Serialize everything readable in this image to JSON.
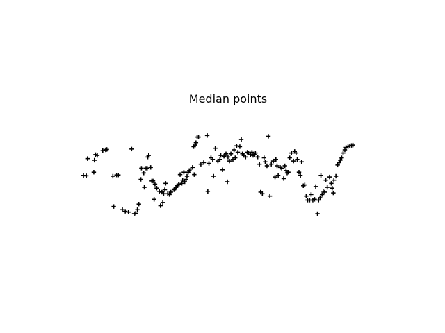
{
  "chart_data": {
    "type": "scatter",
    "title": "Median points",
    "xlabel": "",
    "ylabel": "",
    "axes_visible": false,
    "grid": false,
    "legend": "none",
    "marker": "plus",
    "marker_color": "#000000",
    "xlim": [
      0,
      100
    ],
    "ylim": [
      0,
      100
    ],
    "series": [
      {
        "points": [
          [
            0,
            48
          ],
          [
            1,
            47.5
          ],
          [
            1.4,
            69
          ],
          [
            3.6,
            52
          ],
          [
            3.8,
            67
          ],
          [
            4.2,
            74
          ],
          [
            4.8,
            73
          ],
          [
            6.7,
            79
          ],
          [
            7.7,
            80
          ],
          [
            8.1,
            80.5
          ],
          [
            10.2,
            47
          ],
          [
            10.5,
            9
          ],
          [
            11.5,
            48.5
          ],
          [
            12.1,
            48.5
          ],
          [
            13.5,
            5
          ],
          [
            14.5,
            3
          ],
          [
            15.6,
            2
          ],
          [
            16.7,
            81
          ],
          [
            17.6,
            0
          ],
          [
            18.1,
            0.5
          ],
          [
            18.7,
            5
          ],
          [
            19.2,
            12
          ],
          [
            19.9,
            43
          ],
          [
            20.1,
            57
          ],
          [
            20.9,
            51
          ],
          [
            21.1,
            33
          ],
          [
            21.7,
            57
          ],
          [
            22.1,
            57
          ],
          [
            22.3,
            71
          ],
          [
            22.6,
            73
          ],
          [
            23.3,
            58
          ],
          [
            23.7,
            41
          ],
          [
            24.1,
            41
          ],
          [
            24.5,
            18
          ],
          [
            24.8,
            37
          ],
          [
            25.4,
            32
          ],
          [
            26.3,
            28
          ],
          [
            26.7,
            10
          ],
          [
            27.2,
            27
          ],
          [
            27.5,
            14
          ],
          [
            27.8,
            25
          ],
          [
            28.2,
            30
          ],
          [
            28.5,
            38
          ],
          [
            29.2,
            25
          ],
          [
            29.8,
            24
          ],
          [
            30.3,
            27
          ],
          [
            31.4,
            30
          ],
          [
            31.7,
            31
          ],
          [
            32.1,
            33
          ],
          [
            32.6,
            35
          ],
          [
            33.0,
            37
          ],
          [
            33.5,
            49
          ],
          [
            34.4,
            42
          ],
          [
            34.1,
            38
          ],
          [
            34.8,
            52
          ],
          [
            35.1,
            40
          ],
          [
            35.6,
            43
          ],
          [
            35.9,
            47
          ],
          [
            36.3,
            52
          ],
          [
            36.7,
            54
          ],
          [
            37.2,
            56
          ],
          [
            37.8,
            58
          ],
          [
            38.4,
            49
          ],
          [
            38.2,
            84
          ],
          [
            38.7,
            86
          ],
          [
            39.0,
            89
          ],
          [
            39.4,
            96
          ],
          [
            39.9,
            96
          ],
          [
            40.7,
            62
          ],
          [
            41.7,
            64
          ],
          [
            42.9,
            98
          ],
          [
            43.1,
            28
          ],
          [
            43.5,
            63
          ],
          [
            44.2,
            70
          ],
          [
            44.8,
            68
          ],
          [
            45.1,
            47
          ],
          [
            45.7,
            82
          ],
          [
            46.6,
            66
          ],
          [
            47.3,
            68
          ],
          [
            47.6,
            73
          ],
          [
            48.2,
            55
          ],
          [
            48.7,
            72
          ],
          [
            49.4,
            75
          ],
          [
            49.9,
            40
          ],
          [
            50.1,
            71
          ],
          [
            50.6,
            66
          ],
          [
            51.1,
            75
          ],
          [
            51.8,
            68
          ],
          [
            52.2,
            80
          ],
          [
            52.6,
            70
          ],
          [
            53.1,
            85
          ],
          [
            53.5,
            77
          ],
          [
            54.2,
            84
          ],
          [
            54.7,
            93
          ],
          [
            55.1,
            75
          ],
          [
            55.6,
            73
          ],
          [
            56.2,
            71
          ],
          [
            56.8,
            77
          ],
          [
            57.2,
            76
          ],
          [
            57.9,
            74
          ],
          [
            58.4,
            77
          ],
          [
            58.8,
            73
          ],
          [
            59.3,
            74
          ],
          [
            59.6,
            76
          ],
          [
            60.4,
            71
          ],
          [
            61.0,
            62
          ],
          [
            61.4,
            27
          ],
          [
            62.0,
            25
          ],
          [
            62.6,
            70
          ],
          [
            63.0,
            65
          ],
          [
            63.6,
            60
          ],
          [
            64.1,
            97
          ],
          [
            64.6,
            22
          ],
          [
            65.1,
            62
          ],
          [
            65.8,
            66
          ],
          [
            66.4,
            46
          ],
          [
            66.7,
            68
          ],
          [
            67.1,
            60
          ],
          [
            67.5,
            48
          ],
          [
            68.2,
            58
          ],
          [
            68.7,
            57
          ],
          [
            69.4,
            44
          ],
          [
            69.8,
            60
          ],
          [
            70.2,
            54
          ],
          [
            70.6,
            51
          ],
          [
            71.0,
            52
          ],
          [
            71.5,
            70
          ],
          [
            72.1,
            76
          ],
          [
            72.8,
            66
          ],
          [
            73.2,
            78
          ],
          [
            73.7,
            76
          ],
          [
            74.1,
            68
          ],
          [
            74.7,
            52
          ],
          [
            75.2,
            48
          ],
          [
            75.6,
            65
          ],
          [
            76.2,
            35
          ],
          [
            76.7,
            36
          ],
          [
            77.2,
            22
          ],
          [
            77.7,
            17
          ],
          [
            78.4,
            17
          ],
          [
            78.9,
            24
          ],
          [
            79.5,
            17
          ],
          [
            80.1,
            18
          ],
          [
            80.5,
            34
          ],
          [
            81.1,
            0
          ],
          [
            81.5,
            17
          ],
          [
            82.0,
            20
          ],
          [
            82.3,
            48
          ],
          [
            82.7,
            24
          ],
          [
            83.1,
            28
          ],
          [
            83.6,
            27
          ],
          [
            84.0,
            42
          ],
          [
            84.5,
            33
          ],
          [
            85.3,
            46
          ],
          [
            85.9,
            38
          ],
          [
            86.2,
            32
          ],
          [
            86.6,
            26
          ],
          [
            86.8,
            42
          ],
          [
            87.5,
            47
          ],
          [
            88.1,
            61
          ],
          [
            88.6,
            64
          ],
          [
            89.0,
            67
          ],
          [
            89.5,
            70
          ],
          [
            90.0,
            76
          ],
          [
            90.6,
            80
          ],
          [
            91.0,
            83
          ],
          [
            91.7,
            84
          ],
          [
            92.3,
            85
          ],
          [
            92.9,
            85.5
          ],
          [
            93.4,
            86
          ]
        ]
      }
    ]
  }
}
